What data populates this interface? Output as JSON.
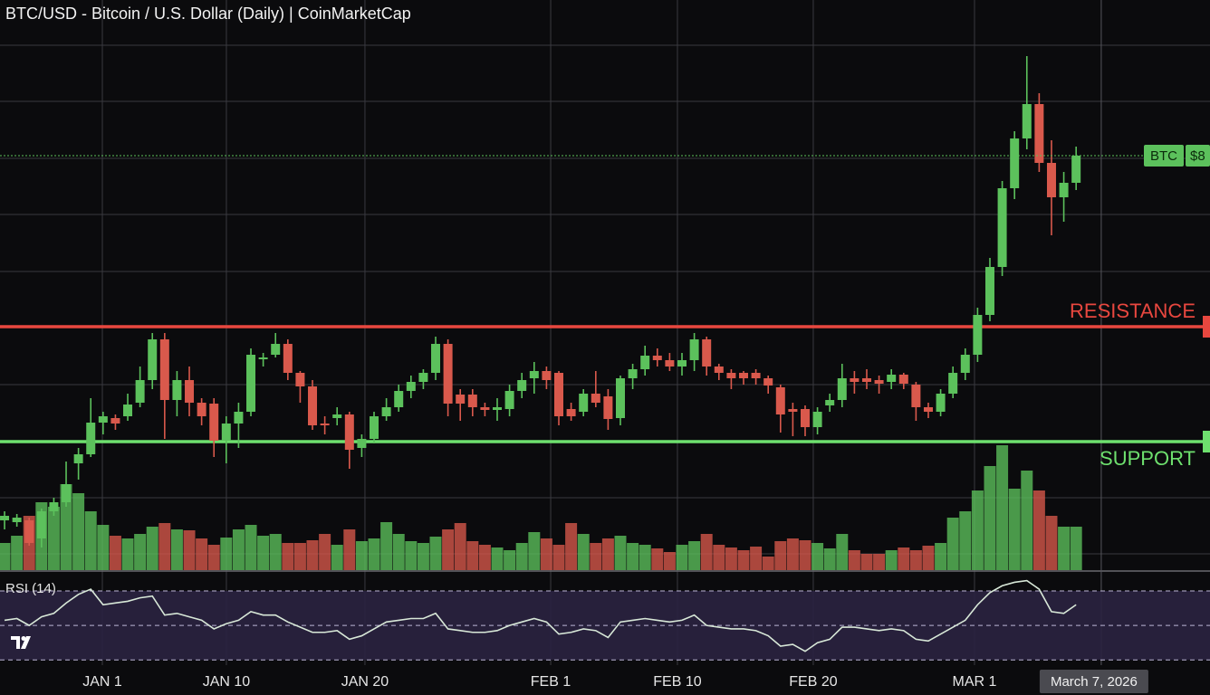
{
  "chart_data": {
    "type": "candlestick",
    "title": "BTC/USD - Bitcoin / U.S. Dollar (Daily) | CoinMarketCap",
    "xlim": [
      -0.37,
      97.87
    ],
    "xticks": [
      {
        "value": 7.94,
        "label": "JAN 1"
      },
      {
        "value": 18.01,
        "label": "JAN 10"
      },
      {
        "value": 29.26,
        "label": "JAN 20"
      },
      {
        "value": 44.34,
        "label": "FEB 1"
      },
      {
        "value": 54.63,
        "label": "FEB 10"
      },
      {
        "value": 65.66,
        "label": "FEB 20"
      },
      {
        "value": 78.75,
        "label": "MAR 1"
      }
    ],
    "ylim": [
      0,
      630
    ],
    "ygrid": [
      18,
      80,
      143,
      205,
      268,
      330,
      393,
      455,
      518,
      580
    ],
    "up_color": "#5cc15c",
    "down_color": "#d9594c",
    "open": [
      55,
      53,
      55,
      35,
      65,
      75,
      118,
      128,
      163,
      168,
      170,
      185,
      210,
      255,
      188,
      210,
      185,
      184,
      143,
      162,
      175,
      233,
      238,
      250,
      218,
      203,
      162,
      168,
      172,
      135,
      145,
      170,
      180,
      198,
      208,
      218,
      250,
      194,
      194,
      180,
      177,
      178,
      198,
      212,
      220,
      218,
      178,
      175,
      195,
      192,
      168,
      212,
      222,
      237,
      232,
      225,
      232,
      255,
      225,
      218,
      218,
      218,
      212,
      202,
      178,
      178,
      158,
      182,
      188,
      212,
      212,
      210,
      208,
      216,
      205,
      180,
      175,
      195,
      218,
      238,
      282,
      335,
      422,
      477,
      515,
      450,
      412,
      428
    ],
    "high": [
      65,
      62,
      58,
      68,
      80,
      120,
      135,
      190,
      175,
      172,
      195,
      225,
      262,
      262,
      220,
      225,
      190,
      190,
      170,
      185,
      245,
      240,
      262,
      255,
      220,
      210,
      170,
      180,
      175,
      150,
      175,
      190,
      205,
      215,
      222,
      258,
      255,
      200,
      200,
      185,
      190,
      205,
      218,
      230,
      225,
      220,
      185,
      200,
      220,
      200,
      215,
      228,
      248,
      245,
      240,
      240,
      262,
      258,
      228,
      222,
      220,
      222,
      215,
      205,
      185,
      182,
      180,
      195,
      228,
      220,
      222,
      215,
      222,
      218,
      208,
      185,
      200,
      225,
      245,
      290,
      345,
      430,
      485,
      568,
      527,
      475,
      440,
      468
    ],
    "low": [
      45,
      48,
      27,
      25,
      60,
      70,
      100,
      125,
      150,
      155,
      165,
      180,
      200,
      145,
      170,
      170,
      160,
      125,
      118,
      135,
      170,
      225,
      235,
      210,
      185,
      155,
      150,
      160,
      112,
      125,
      140,
      165,
      175,
      190,
      200,
      210,
      170,
      165,
      170,
      170,
      165,
      170,
      190,
      195,
      200,
      160,
      165,
      170,
      180,
      155,
      160,
      200,
      215,
      225,
      220,
      215,
      220,
      215,
      210,
      200,
      205,
      205,
      195,
      152,
      148,
      148,
      150,
      175,
      180,
      195,
      200,
      195,
      200,
      200,
      165,
      168,
      170,
      190,
      210,
      230,
      275,
      325,
      410,
      465,
      440,
      370,
      385,
      420
    ],
    "close": [
      60,
      58,
      30,
      65,
      75,
      95,
      128,
      163,
      170,
      162,
      183,
      210,
      255,
      188,
      210,
      185,
      170,
      143,
      162,
      175,
      238,
      235,
      250,
      218,
      203,
      160,
      160,
      172,
      133,
      145,
      170,
      180,
      198,
      208,
      218,
      250,
      184,
      184,
      180,
      177,
      180,
      198,
      210,
      220,
      210,
      170,
      170,
      195,
      185,
      167,
      212,
      222,
      237,
      232,
      225,
      232,
      255,
      225,
      218,
      212,
      212,
      212,
      204,
      172,
      175,
      158,
      175,
      188,
      212,
      208,
      208,
      206,
      216,
      206,
      180,
      175,
      195,
      218,
      238,
      282,
      335,
      422,
      477,
      515,
      450,
      412,
      428,
      458
    ],
    "volume": {
      "ylim": [
        0,
        630
      ],
      "values": [
        30,
        38,
        60,
        75,
        70,
        95,
        85,
        65,
        50,
        38,
        35,
        40,
        48,
        52,
        45,
        44,
        35,
        28,
        36,
        45,
        50,
        38,
        40,
        30,
        30,
        33,
        40,
        28,
        45,
        32,
        35,
        53,
        40,
        32,
        30,
        37,
        45,
        52,
        32,
        28,
        25,
        22,
        30,
        42,
        35,
        28,
        52,
        40,
        30,
        35,
        38,
        30,
        28,
        24,
        20,
        28,
        32,
        40,
        28,
        25,
        22,
        26,
        15,
        32,
        35,
        33,
        30,
        24,
        40,
        22,
        18,
        18,
        22,
        25,
        22,
        27,
        30,
        58,
        65,
        88,
        115,
        138,
        90,
        110,
        88,
        60,
        48,
        48
      ]
    },
    "levels": [
      {
        "name": "RESISTANCE",
        "value": 269,
        "color": "#e8473f"
      },
      {
        "name": "SUPPORT",
        "value": 142,
        "color": "#6ee06e"
      }
    ],
    "price_tag": {
      "name": "BTC",
      "label": "$8",
      "value": 458,
      "color": "#5cc15c"
    },
    "cursor": {
      "x": 89.04,
      "label": "March 7, 2026"
    },
    "rsi": {
      "name": "RSI (14)",
      "ylim": [
        27,
        81
      ],
      "levels": [
        30,
        50,
        70
      ],
      "color": "#d8e8d8",
      "background": "#2a2240",
      "values": [
        53,
        54,
        50,
        55,
        57,
        63,
        68,
        71,
        62,
        63,
        64,
        66,
        67,
        56,
        57,
        55,
        53,
        48,
        51,
        53,
        58,
        56,
        56,
        52,
        49,
        46,
        46,
        47,
        42,
        44,
        48,
        52,
        53,
        54,
        54,
        57,
        48,
        47,
        46,
        46,
        47,
        50,
        52,
        54,
        52,
        45,
        46,
        48,
        47,
        43,
        52,
        53,
        54,
        53,
        52,
        53,
        56,
        50,
        49,
        48,
        48,
        47,
        44,
        38,
        39,
        35,
        40,
        42,
        49,
        49,
        48,
        47,
        48,
        47,
        42,
        41,
        45,
        49,
        53,
        62,
        69,
        73,
        75,
        76,
        71,
        58,
        57,
        62
      ]
    }
  }
}
